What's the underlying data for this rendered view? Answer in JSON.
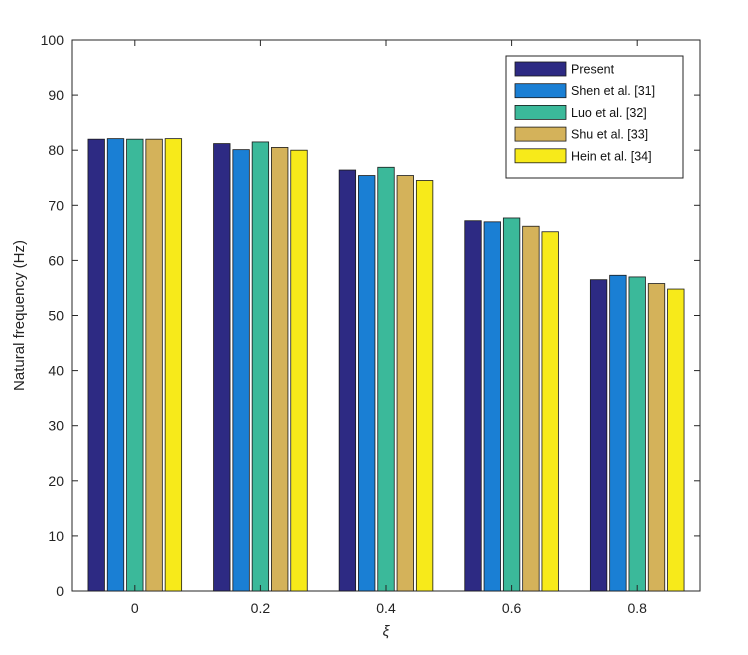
{
  "chart_data": {
    "type": "bar",
    "title": "",
    "xlabel": "ξ",
    "ylabel": "Natural frequency (Hz)",
    "categories": [
      "0",
      "0.2",
      "0.4",
      "0.6",
      "0.8"
    ],
    "ylim": [
      0,
      100
    ],
    "yticks": [
      "0",
      "10",
      "20",
      "30",
      "40",
      "50",
      "60",
      "70",
      "80",
      "90",
      "100"
    ],
    "grid": false,
    "legend_position": "top-right",
    "series": [
      {
        "name": "Present",
        "color": "#2d2a83",
        "values": [
          82.0,
          81.2,
          76.4,
          67.2,
          56.5
        ]
      },
      {
        "name": "Shen et al. [31]",
        "color": "#1a7fd4",
        "values": [
          82.1,
          80.1,
          75.4,
          67.0,
          57.3
        ]
      },
      {
        "name": "Luo et al. [32]",
        "color": "#3bb99a",
        "values": [
          82.0,
          81.5,
          76.9,
          67.7,
          57.0
        ]
      },
      {
        "name": "Shu et al. [33]",
        "color": "#d4b25a",
        "values": [
          82.0,
          80.5,
          75.4,
          66.2,
          55.8
        ]
      },
      {
        "name": "Hein et al. [34]",
        "color": "#f7ea1a",
        "values": [
          82.1,
          80.0,
          74.5,
          65.2,
          54.8
        ]
      }
    ]
  }
}
